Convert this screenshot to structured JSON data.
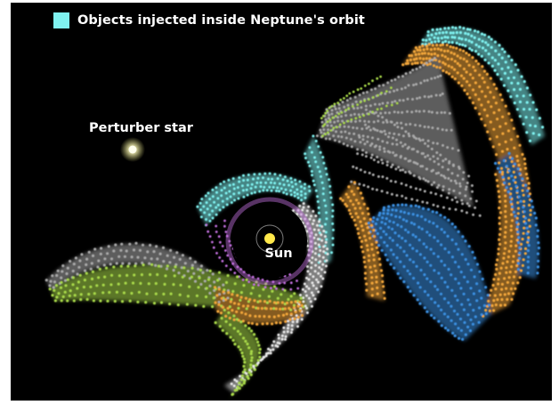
{
  "legend": {
    "label": "Objects injected inside Neptune's orbit",
    "color": "#7ff2f0"
  },
  "perturber": {
    "label": "Perturber star"
  },
  "sun": {
    "label": "Sun"
  },
  "colors": {
    "background": "#000000",
    "cyan": "#7ff2f0",
    "white": "#e8e8e8",
    "grey": "#a9a9a9",
    "orange": "#f2a63a",
    "blue": "#3a8fe0",
    "green": "#a8d94a",
    "violet": "#c470e0",
    "sun": "#ffe84a"
  }
}
